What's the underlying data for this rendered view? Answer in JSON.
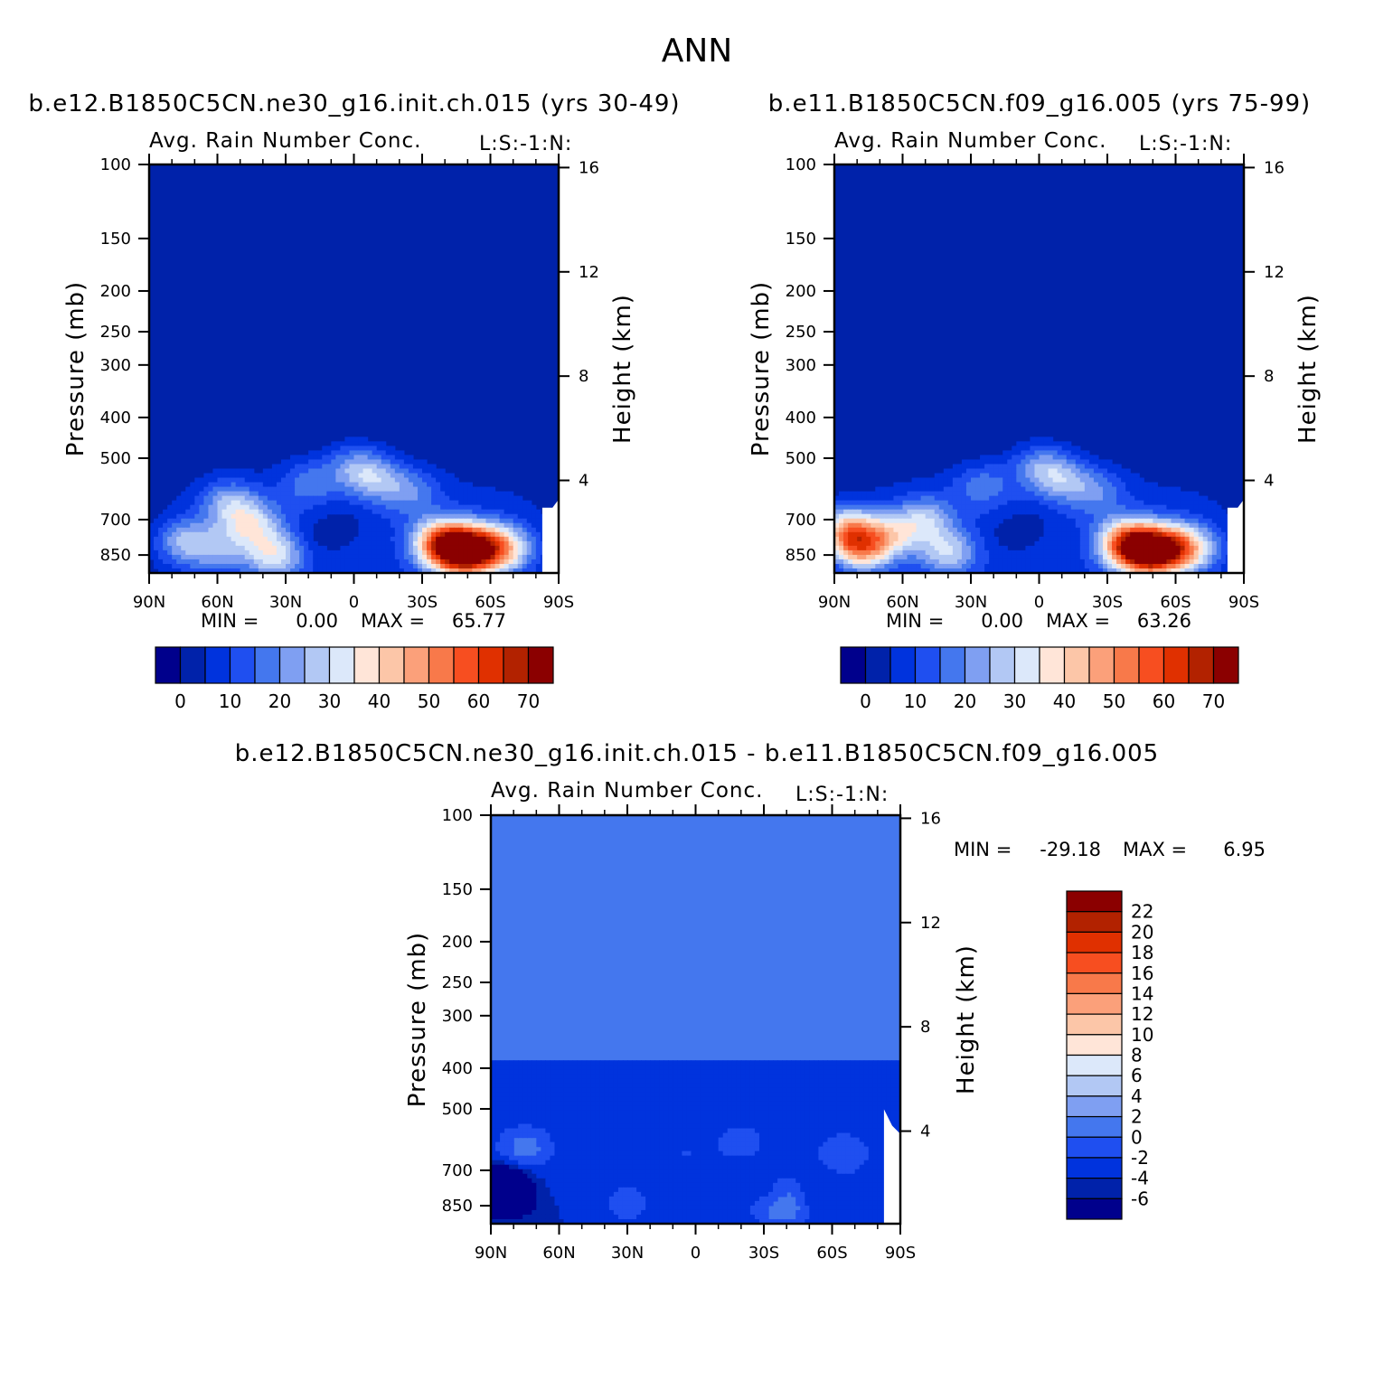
{
  "page_title": "ANN",
  "palette": [
    "#00008c",
    "#0022aa",
    "#0033dd",
    "#1f4ff0",
    "#4477ee",
    "#7f9ff2",
    "#b2c8f4",
    "#dce8fa",
    "#ffe5d8",
    "#fcc6a8",
    "#fba07a",
    "#f8794a",
    "#f74e20",
    "#e03000",
    "#b22200",
    "#8b0000"
  ],
  "chart_data": [
    {
      "type": "heatmap",
      "panel": "model",
      "case_title": "b.e12.B1850C5CN.ne30_g16.init.ch.015 (yrs 30-49)",
      "variable": "Avg. Rain Number Conc.",
      "units": "L:S:-1:N:",
      "ylabel": "Pressure (mb)",
      "ylabel_right": "Height (km)",
      "x_ticks": [
        "90N",
        "60N",
        "30N",
        "0",
        "30S",
        "60S",
        "90S"
      ],
      "y_ticks": [
        100,
        150,
        200,
        250,
        300,
        400,
        500,
        700,
        850
      ],
      "y_right_ticks": [
        16,
        12,
        8,
        4
      ],
      "min_label": "MIN =",
      "min": "0.00",
      "max_label": "MAX =",
      "max": "65.77",
      "colorbar_labels": [
        "0",
        "10",
        "20",
        "30",
        "40",
        "50",
        "60",
        "70"
      ],
      "blobs": [
        {
          "lat": 45,
          "p": 720,
          "v": 25
        },
        {
          "lat": 75,
          "p": 790,
          "v": 22
        },
        {
          "lat": 60,
          "p": 830,
          "v": 15
        },
        {
          "lat": 35,
          "p": 850,
          "v": 28
        },
        {
          "lat": 55,
          "p": 640,
          "v": 20
        },
        {
          "lat": 20,
          "p": 570,
          "v": 14
        },
        {
          "lat": 0,
          "p": 520,
          "v": 17
        },
        {
          "lat": -10,
          "p": 560,
          "v": 19
        },
        {
          "lat": -25,
          "p": 600,
          "v": 14
        },
        {
          "lat": -38,
          "p": 790,
          "v": 40
        },
        {
          "lat": -47,
          "p": 835,
          "v": 66
        },
        {
          "lat": -58,
          "p": 820,
          "v": 36
        },
        {
          "lat": -68,
          "p": 820,
          "v": 22
        }
      ],
      "lows": [
        {
          "lat": 12,
          "p": 760,
          "v": 2
        },
        {
          "lat": 5,
          "p": 720,
          "v": 3
        }
      ]
    },
    {
      "type": "heatmap",
      "panel": "control",
      "case_title": "b.e11.B1850C5CN.f09_g16.005 (yrs 75-99)",
      "variable": "Avg. Rain Number Conc.",
      "units": "L:S:-1:N:",
      "ylabel": "Pressure (mb)",
      "ylabel_right": "Height (km)",
      "x_ticks": [
        "90N",
        "60N",
        "30N",
        "0",
        "30S",
        "60S",
        "90S"
      ],
      "y_ticks": [
        100,
        150,
        200,
        250,
        300,
        400,
        500,
        700,
        850
      ],
      "y_right_ticks": [
        16,
        12,
        8,
        4
      ],
      "min_label": "MIN =",
      "min": "0.00",
      "max_label": "MAX =",
      "max": "63.26",
      "colorbar_labels": [
        "0",
        "10",
        "20",
        "30",
        "40",
        "50",
        "60",
        "70"
      ],
      "blobs": [
        {
          "lat": 85,
          "p": 740,
          "v": 38
        },
        {
          "lat": 78,
          "p": 820,
          "v": 40
        },
        {
          "lat": 65,
          "p": 760,
          "v": 24
        },
        {
          "lat": 50,
          "p": 700,
          "v": 22
        },
        {
          "lat": 40,
          "p": 840,
          "v": 24
        },
        {
          "lat": 25,
          "p": 580,
          "v": 14
        },
        {
          "lat": 0,
          "p": 520,
          "v": 17
        },
        {
          "lat": -10,
          "p": 560,
          "v": 19
        },
        {
          "lat": -25,
          "p": 600,
          "v": 14
        },
        {
          "lat": -38,
          "p": 790,
          "v": 40
        },
        {
          "lat": -47,
          "p": 835,
          "v": 63
        },
        {
          "lat": -58,
          "p": 820,
          "v": 36
        },
        {
          "lat": -68,
          "p": 820,
          "v": 22
        }
      ],
      "lows": [
        {
          "lat": 12,
          "p": 760,
          "v": 2
        },
        {
          "lat": 5,
          "p": 720,
          "v": 3
        }
      ]
    },
    {
      "type": "heatmap",
      "panel": "difference",
      "case_title": "b.e12.B1850C5CN.ne30_g16.init.ch.015 - b.e11.B1850C5CN.f09_g16.005",
      "variable": "Avg. Rain Number Conc.",
      "units": "L:S:-1:N:",
      "ylabel": "Pressure (mb)",
      "ylabel_right": "Height (km)",
      "x_ticks": [
        "90N",
        "60N",
        "30N",
        "0",
        "30S",
        "60S",
        "90S"
      ],
      "y_ticks": [
        100,
        150,
        200,
        250,
        300,
        400,
        500,
        700,
        850
      ],
      "y_right_ticks": [
        16,
        12,
        8,
        4
      ],
      "min_label": "MIN =",
      "min": "-29.18",
      "max_label": "MAX =",
      "max": "6.95",
      "colorbar_labels": [
        "22",
        "20",
        "18",
        "16",
        "14",
        "12",
        "10",
        "8",
        "6",
        "4",
        "2",
        "0",
        "-2",
        "-4",
        "-6"
      ],
      "blobs": [
        {
          "lat": -38,
          "p": 840,
          "v": 6.9
        },
        {
          "lat": 30,
          "p": 840,
          "v": 3
        },
        {
          "lat": 75,
          "p": 620,
          "v": 5
        },
        {
          "lat": 5,
          "p": 640,
          "v": 2
        },
        {
          "lat": -20,
          "p": 600,
          "v": 3
        },
        {
          "lat": -65,
          "p": 640,
          "v": 4
        }
      ],
      "lows": [
        {
          "lat": 85,
          "p": 780,
          "v": -29
        },
        {
          "lat": 78,
          "p": 830,
          "v": -8
        },
        {
          "lat": 55,
          "p": 760,
          "v": -3
        },
        {
          "lat": -30,
          "p": 780,
          "v": -3
        },
        {
          "lat": -55,
          "p": 800,
          "v": -4
        },
        {
          "lat": -75,
          "p": 820,
          "v": -3
        }
      ]
    }
  ]
}
